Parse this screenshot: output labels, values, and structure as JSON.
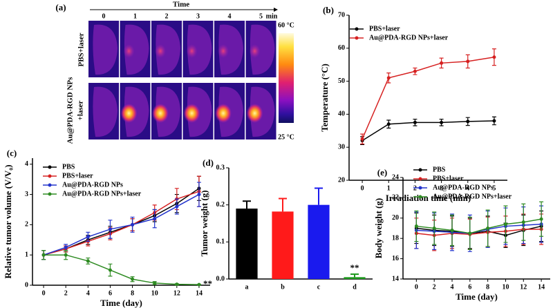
{
  "thermal_images": {
    "label": "(a)",
    "time_label": "Time",
    "times": [
      "0",
      "1",
      "2",
      "3",
      "4",
      "5"
    ],
    "time_unit": "min",
    "rows": [
      [
        "PBS+laser"
      ],
      [
        "Au@PDA-RGD NPs",
        "+laser"
      ]
    ],
    "scale_max": "60 °C",
    "scale_min": "25 °C"
  },
  "chart_data": [
    {
      "type": "line",
      "panel": "(b)",
      "x_label": "Irradiation time (min)",
      "y_label": "Temperature (°C)",
      "x": [
        0,
        1,
        2,
        3,
        4,
        5
      ],
      "xlim": [
        -0.5,
        5.5
      ],
      "xticks": [
        0,
        1,
        2,
        3,
        4,
        5
      ],
      "ylim": [
        20,
        70
      ],
      "yticks": [
        20,
        30,
        40,
        50,
        60,
        70
      ],
      "legend": "upper left",
      "series": [
        {
          "name": "PBS+laser",
          "color": "#000000",
          "values": [
            32,
            37,
            37.5,
            37.5,
            37.8,
            38
          ],
          "errors": [
            1.2,
            1.2,
            1,
            1,
            1.2,
            1.2
          ]
        },
        {
          "name": "Au@PDA-RGD NPs+laser",
          "color": "#d62020",
          "values": [
            32.5,
            51,
            53,
            55.5,
            56,
            57.3
          ],
          "errors": [
            1.5,
            1.5,
            1,
            1.5,
            2,
            2.5
          ]
        }
      ]
    },
    {
      "type": "line",
      "panel": "(c)",
      "x_label": "Time (day)",
      "y_label": "Relative tumor volume (V/V₀)",
      "x": [
        0,
        2,
        4,
        6,
        8,
        10,
        12,
        14
      ],
      "xlim": [
        -1,
        15
      ],
      "xticks": [
        0,
        2,
        4,
        6,
        8,
        10,
        12,
        14
      ],
      "ylim": [
        0,
        4.2
      ],
      "yticks": [
        0,
        1,
        2,
        3,
        4
      ],
      "legend": "upper left",
      "annotation": "**",
      "series": [
        {
          "name": "PBS",
          "color": "#000000",
          "values": [
            1,
            1.2,
            1.5,
            1.75,
            2,
            2.3,
            2.7,
            3.2
          ],
          "errors": [
            0.15,
            0.1,
            0.15,
            0.2,
            0.2,
            0.2,
            0.3,
            0.4
          ]
        },
        {
          "name": "PBS+laser",
          "color": "#d62020",
          "values": [
            1,
            1.2,
            1.45,
            1.7,
            2,
            2.4,
            2.85,
            3.1
          ],
          "errors": [
            0.15,
            0.1,
            0.15,
            0.2,
            0.2,
            0.25,
            0.35,
            0.5
          ]
        },
        {
          "name": "Au@PDA-RGD NPs",
          "color": "#2233cc",
          "values": [
            1,
            1.25,
            1.6,
            1.85,
            2,
            2.2,
            2.6,
            3
          ],
          "errors": [
            0.15,
            0.1,
            0.15,
            0.3,
            0.25,
            0.3,
            0.25,
            0.4
          ]
        },
        {
          "name": "Au@PDA-RGD NPs+laser",
          "color": "#2e8b22",
          "values": [
            1,
            1,
            0.8,
            0.5,
            0.2,
            0.07,
            0.03,
            0.02
          ],
          "errors": [
            0.15,
            0.15,
            0.1,
            0.2,
            0.08,
            0.05,
            0.02,
            0.01
          ]
        }
      ]
    },
    {
      "type": "bar",
      "panel": "(d)",
      "y_label": "Tumor weight (g)",
      "categories": [
        "a",
        "b",
        "c",
        "d"
      ],
      "values": [
        0.19,
        0.182,
        0.2,
        0.005
      ],
      "errors": [
        0.02,
        0.035,
        0.045,
        0.008
      ],
      "colors": [
        "#000000",
        "#ff1a1a",
        "#1a1aee",
        "#1f9a1f"
      ],
      "ylim": [
        0,
        0.3
      ],
      "yticks": [
        {
          "value": 0,
          "label": "0.0"
        },
        0.1,
        0.2,
        0.3
      ],
      "annotation": "**"
    },
    {
      "type": "line",
      "panel": "(e)",
      "x_label": "Time (day)",
      "y_label": "Body weight (g)",
      "x": [
        0,
        2,
        4,
        6,
        8,
        10,
        12,
        14
      ],
      "xlim": [
        -1.5,
        15
      ],
      "xticks": [
        0,
        2,
        4,
        6,
        8,
        10,
        12,
        14
      ],
      "ylim": [
        14,
        24
      ],
      "yticks": [
        14,
        16,
        18,
        20,
        22,
        24
      ],
      "legend": "upper left",
      "series": [
        {
          "name": "PBS",
          "color": "#000000",
          "values": [
            19,
            18.8,
            18.7,
            18.5,
            18.7,
            18.3,
            18.8,
            19.2
          ],
          "errors": [
            1.5,
            1.5,
            1.5,
            1.5,
            1.5,
            1.2,
            1.5,
            1.5
          ]
        },
        {
          "name": "PBS+laser",
          "color": "#d62020",
          "values": [
            18.5,
            18.3,
            18.5,
            18.4,
            18.6,
            18.7,
            18.9,
            18.9
          ],
          "errors": [
            1.5,
            1.5,
            1.5,
            1.5,
            1.5,
            1.5,
            1.5,
            1.5
          ]
        },
        {
          "name": "Au@PDA-RGD NPs",
          "color": "#2233cc",
          "values": [
            18.8,
            18.7,
            18.6,
            18.5,
            18.9,
            19.2,
            19.3,
            19.4
          ],
          "errors": [
            1.8,
            1.8,
            1.8,
            1.8,
            1.8,
            1.8,
            1.8,
            1.8
          ]
        },
        {
          "name": "Au@PDA-RGD NPs+laser",
          "color": "#2e8b22",
          "values": [
            19.2,
            19,
            18.8,
            18.5,
            19,
            19.4,
            19.6,
            19.9
          ],
          "errors": [
            1.5,
            1.6,
            1.5,
            1.6,
            1.8,
            1.8,
            1.8,
            1.7
          ]
        }
      ]
    }
  ]
}
